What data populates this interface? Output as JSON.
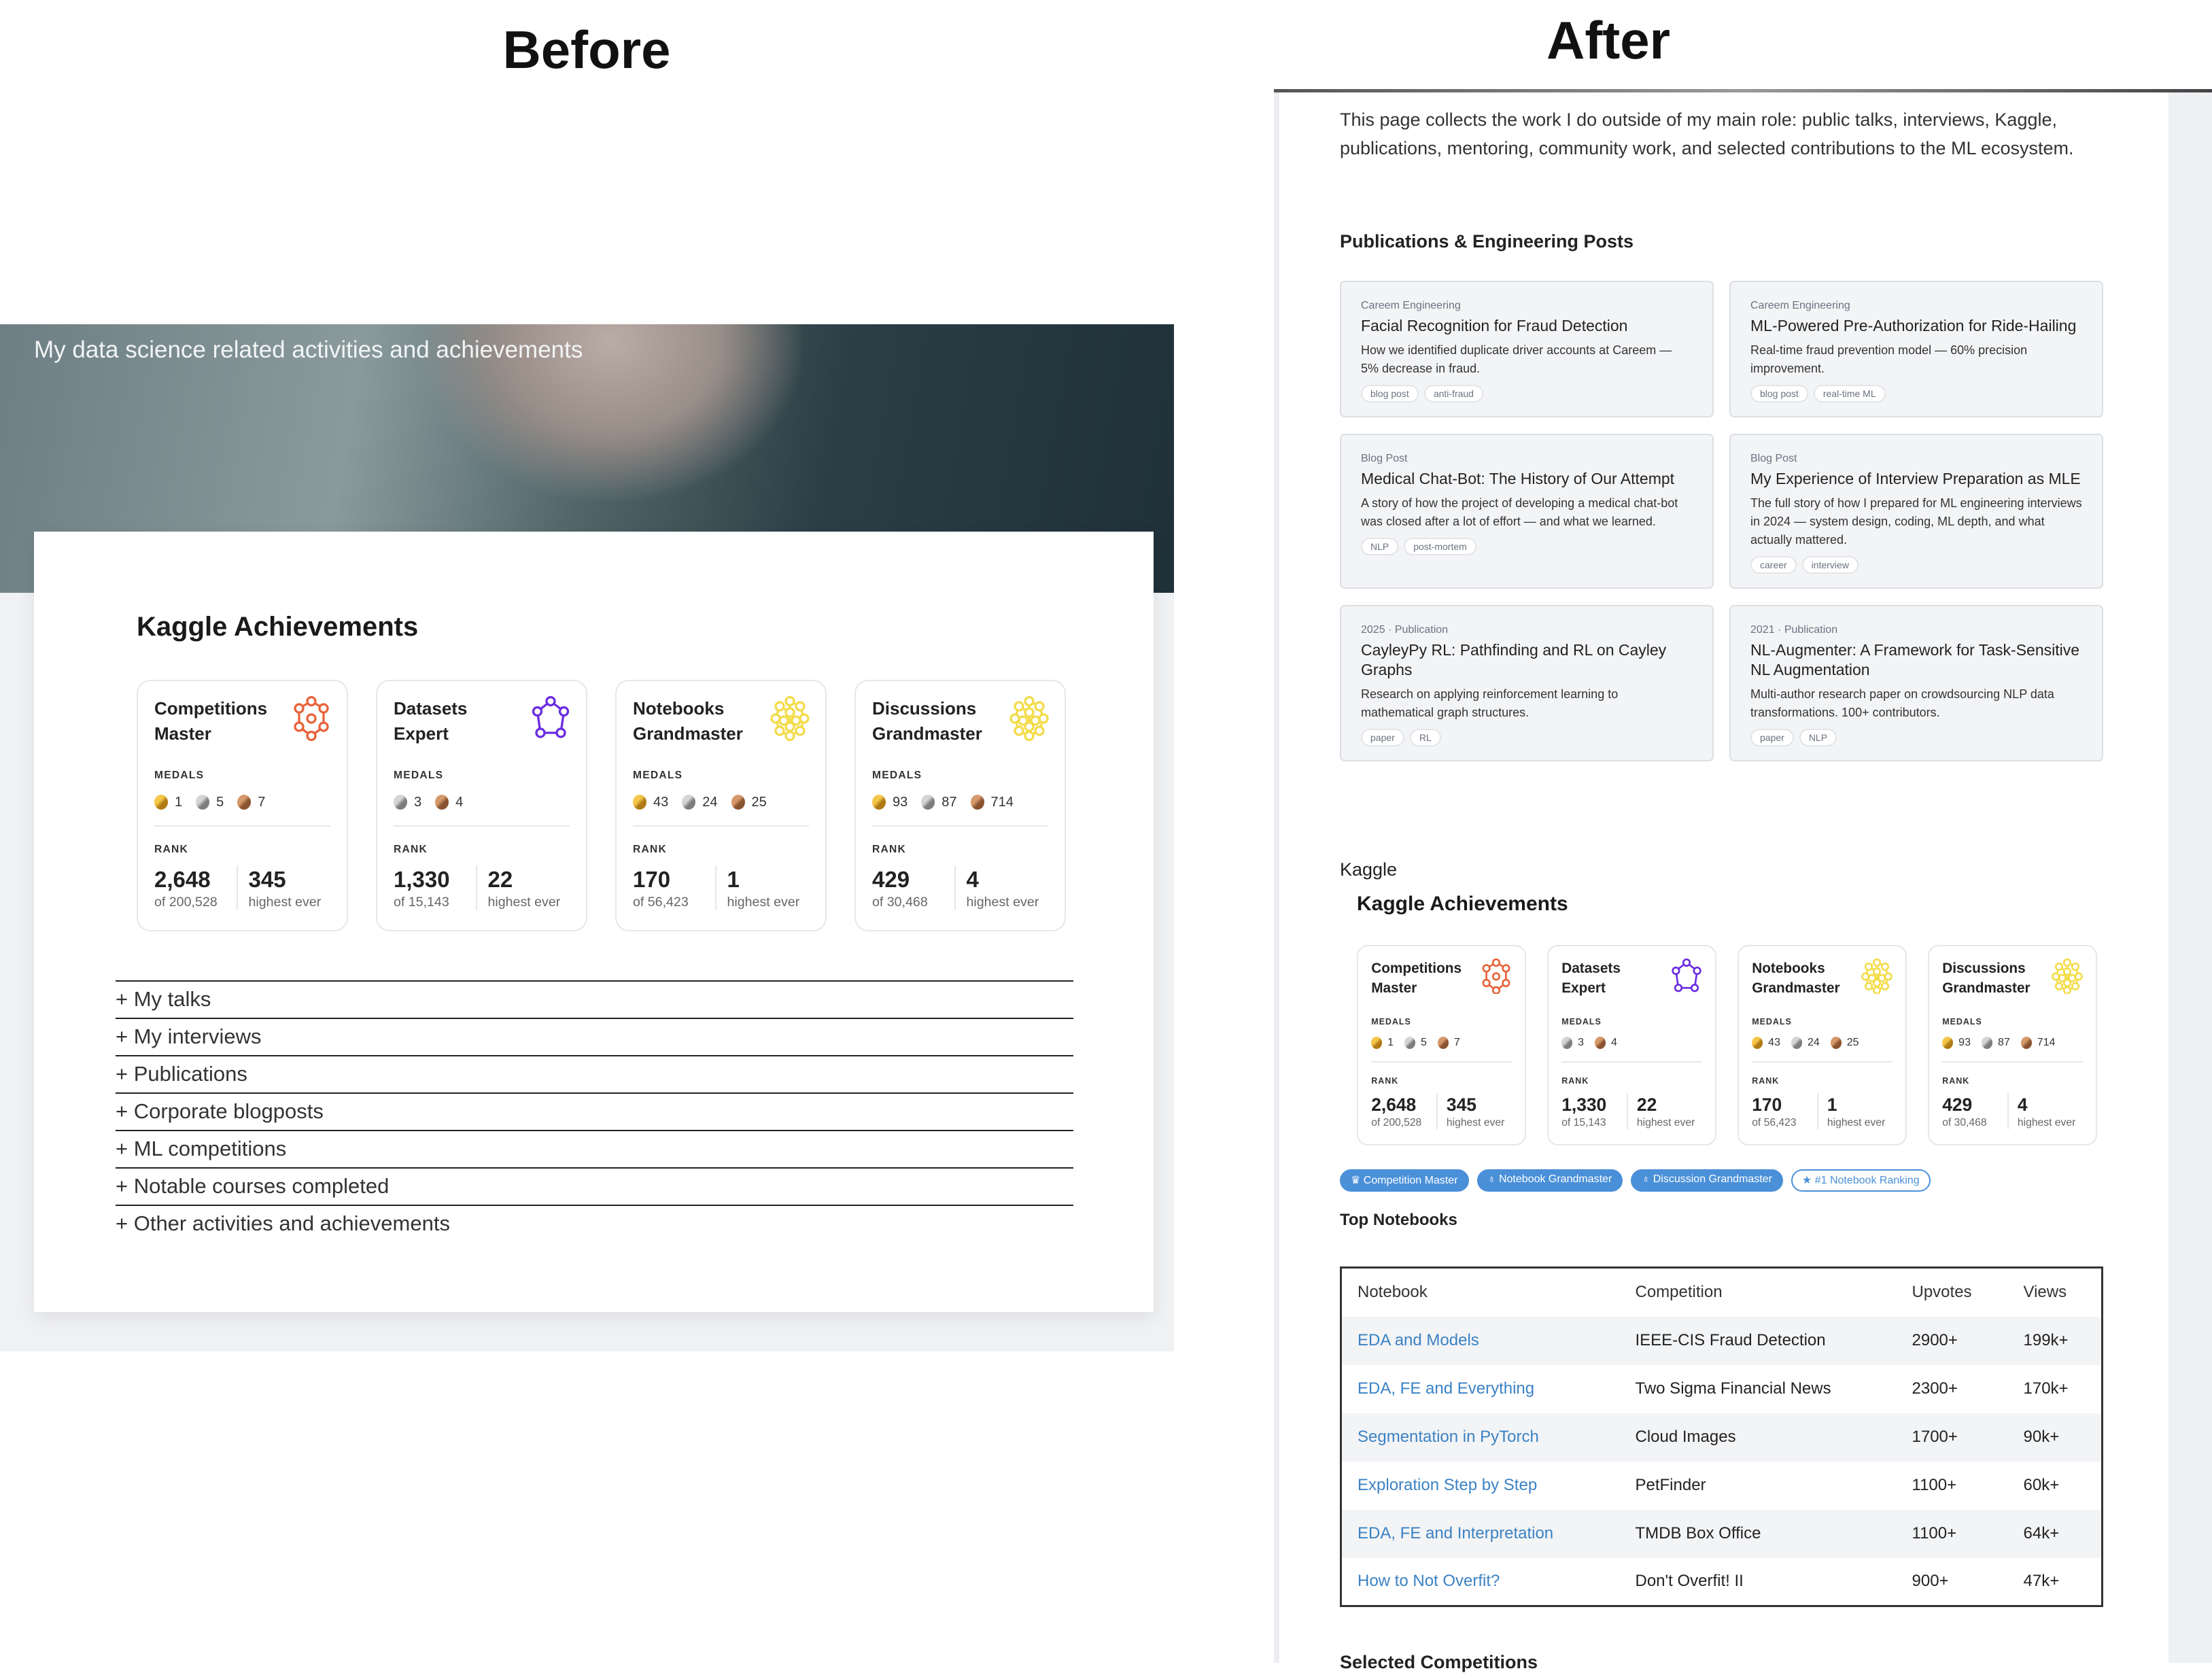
{
  "labels": {
    "before": "Before",
    "after": "After"
  },
  "before": {
    "hero_text": "My data science related activities and achievements",
    "kaggle_title": "Kaggle Achievements",
    "accordion": [
      "+ My talks",
      "+ My interviews",
      "+ Publications",
      "+ Corporate blogposts",
      "+ ML competitions",
      "+ Notable courses completed",
      "+ Other activities and achievements"
    ]
  },
  "kaggle_cards": [
    {
      "title": "Competitions Master",
      "icon": "competitions-master-icon",
      "color": "#e8623a",
      "medals_label": "MEDALS",
      "medals": [
        {
          "type": "gold",
          "count": "1"
        },
        {
          "type": "silver",
          "count": "5"
        },
        {
          "type": "bronze",
          "count": "7"
        }
      ],
      "rank_label": "RANK",
      "rank": "2,648",
      "of": "of 200,528",
      "highest": "345",
      "highest_label": "highest ever"
    },
    {
      "title": "Datasets Expert",
      "icon": "datasets-expert-icon",
      "color": "#6a2be0",
      "medals_label": "MEDALS",
      "medals": [
        {
          "type": "silver",
          "count": "3"
        },
        {
          "type": "bronze",
          "count": "4"
        }
      ],
      "rank_label": "RANK",
      "rank": "1,330",
      "of": "of 15,143",
      "highest": "22",
      "highest_label": "highest ever"
    },
    {
      "title": "Notebooks Grandmaster",
      "icon": "notebooks-grandmaster-icon",
      "color": "#f3dc4a",
      "medals_label": "MEDALS",
      "medals": [
        {
          "type": "gold",
          "count": "43"
        },
        {
          "type": "silver",
          "count": "24"
        },
        {
          "type": "bronze",
          "count": "25"
        }
      ],
      "rank_label": "RANK",
      "rank": "170",
      "of": "of 56,423",
      "highest": "1",
      "highest_label": "highest ever"
    },
    {
      "title": "Discussions Grandmaster",
      "icon": "discussions-grandmaster-icon",
      "color": "#f3dc4a",
      "medals_label": "MEDALS",
      "medals": [
        {
          "type": "gold",
          "count": "93"
        },
        {
          "type": "silver",
          "count": "87"
        },
        {
          "type": "bronze",
          "count": "714"
        }
      ],
      "rank_label": "RANK",
      "rank": "429",
      "of": "of 30,468",
      "highest": "4",
      "highest_label": "highest ever"
    }
  ],
  "after": {
    "intro": "This page collects the work I do outside of my main role: public talks, interviews, Kaggle, publications, mentoring, community work, and selected contributions to the ML ecosystem.",
    "pubs_title": "Publications & Engineering Posts",
    "pubs": [
      {
        "source": "Careem Engineering",
        "title": "Facial Recognition for Fraud Detection",
        "desc": "How we identified duplicate driver accounts at Careem — 5% decrease in fraud.",
        "tags": [
          "blog post",
          "anti-fraud"
        ]
      },
      {
        "source": "Careem Engineering",
        "title": "ML-Powered Pre-Authorization for Ride-Hailing",
        "desc": "Real-time fraud prevention model — 60% precision improvement.",
        "tags": [
          "blog post",
          "real-time ML"
        ]
      },
      {
        "source": "Blog Post",
        "title": "Medical Chat-Bot: The History of Our Attempt",
        "desc": "A story of how the project of developing a medical chat-bot was closed after a lot of effort — and what we learned.",
        "tags": [
          "NLP",
          "post-mortem"
        ]
      },
      {
        "source": "Blog Post",
        "title": "My Experience of Interview Preparation as MLE",
        "desc": "The full story of how I prepared for ML engineering interviews in 2024 — system design, coding, ML depth, and what actually mattered.",
        "tags": [
          "career",
          "interview"
        ]
      },
      {
        "source": "2025 · Publication",
        "title": "CayleyPy RL: Pathfinding and RL on Cayley Graphs",
        "desc": "Research on applying reinforcement learning to mathematical graph structures.",
        "tags": [
          "paper",
          "RL"
        ]
      },
      {
        "source": "2021 · Publication",
        "title": "NL-Augmenter: A Framework for Task-Sensitive NL Augmentation",
        "desc": "Multi-author research paper on crowdsourcing NLP data transformations. 100+ contributors.",
        "tags": [
          "paper",
          "NLP"
        ]
      }
    ],
    "kaggle_heading": "Kaggle",
    "kaggle_title": "Kaggle Achievements",
    "badges": [
      {
        "label": "Competition Master",
        "icon": "trophy-icon",
        "glyph": "🏆︎",
        "style": "filled"
      },
      {
        "label": "Notebook Grandmaster",
        "icon": "medal-icon",
        "glyph": "ᵒ",
        "style": "filled"
      },
      {
        "label": "Discussion Grandmaster",
        "icon": "medal-icon",
        "glyph": "ᵒ",
        "style": "filled"
      },
      {
        "label": "#1 Notebook Ranking",
        "icon": "star-icon",
        "glyph": "★",
        "style": "outline"
      }
    ],
    "top_notebooks_title": "Top Notebooks",
    "table": {
      "headers": [
        "Notebook",
        "Competition",
        "Upvotes",
        "Views"
      ],
      "rows": [
        [
          "EDA and Models",
          "IEEE-CIS Fraud Detection",
          "2900+",
          "199k+"
        ],
        [
          "EDA, FE and Everything",
          "Two Sigma Financial News",
          "2300+",
          "170k+"
        ],
        [
          "Segmentation in PyTorch",
          "Cloud Images",
          "1700+",
          "90k+"
        ],
        [
          "Exploration Step by Step",
          "PetFinder",
          "1100+",
          "60k+"
        ],
        [
          "EDA, FE and Interpretation",
          "TMDB Box Office",
          "1100+",
          "64k+"
        ],
        [
          "How to Not Overfit?",
          "Don't Overfit! II",
          "900+",
          "47k+"
        ]
      ]
    },
    "next_section": "Selected Competitions"
  },
  "colors": {
    "link": "#3b82c4",
    "badge": "#4a90d9"
  }
}
